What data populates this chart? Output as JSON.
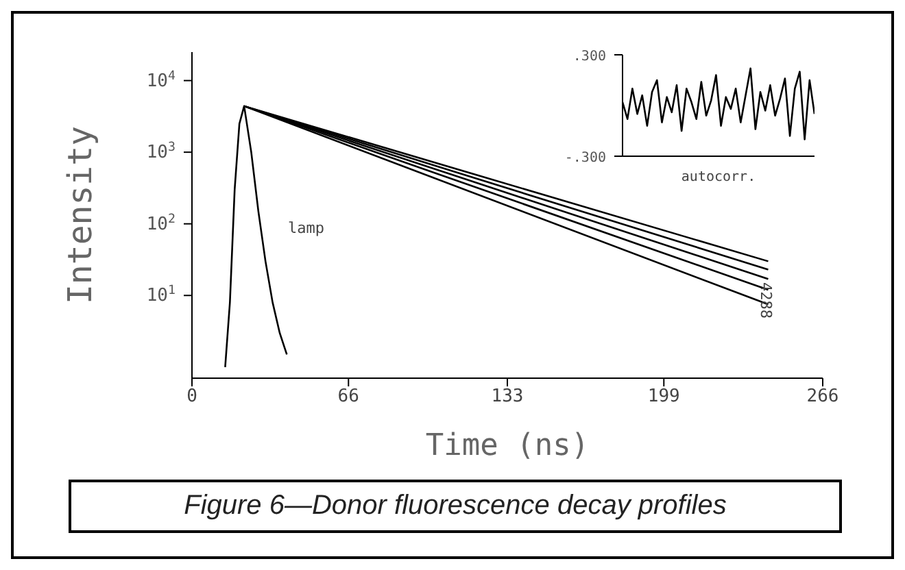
{
  "chart_data": [
    {
      "type": "line",
      "xlabel": "Time (ns)",
      "ylabel": "Intensity",
      "log": "y",
      "xlim": [
        0,
        266
      ],
      "xticks": [
        0,
        66,
        133,
        199,
        266
      ],
      "ylim": [
        0.7,
        25000
      ],
      "yticks": [
        {
          "value": 10,
          "label": "10$^{1}$"
        },
        {
          "value": 100,
          "label": "10$^{2}$"
        },
        {
          "value": 1000,
          "label": "10$^{3}$"
        },
        {
          "value": 10000,
          "label": "10$^{4}$"
        }
      ],
      "grid": false,
      "legend": false,
      "marker": "none",
      "line_style": "solid",
      "annotations": [
        "lamp",
        "4288",
        "Figure 6—Donor fluorescence decay profiles"
      ],
      "series": [
        {
          "color": "#000000",
          "x": [
            14,
            16,
            18,
            20,
            22,
            25,
            28,
            31,
            34,
            37,
            40
          ],
          "values": [
            1,
            8,
            300,
            2500,
            4400,
            1000,
            150,
            30,
            8,
            3,
            1.5
          ]
        },
        {
          "color": "#000000",
          "x": [
            22,
            243
          ],
          "values": [
            4400,
            30
          ]
        },
        {
          "color": "#000000",
          "x": [
            22,
            243
          ],
          "values": [
            4400,
            23
          ]
        },
        {
          "color": "#000000",
          "x": [
            22,
            243
          ],
          "values": [
            4400,
            17
          ]
        },
        {
          "color": "#000000",
          "x": [
            22,
            243
          ],
          "values": [
            4400,
            12
          ]
        },
        {
          "color": "#000000",
          "x": [
            22,
            243
          ],
          "values": [
            4400,
            7.5
          ]
        }
      ]
    },
    {
      "type": "line",
      "xlabel": "autocorr.",
      "ylim": [
        -0.3,
        0.3
      ],
      "yticks": [
        {
          "value": 0.3,
          "label": ".300"
        },
        {
          "value": -0.3,
          "label": "-.300"
        }
      ],
      "tick_labels": "y",
      "grid": false,
      "legend": false,
      "marker": "none",
      "line_style": "solid",
      "categories": [
        null,
        null,
        null,
        null,
        null,
        null,
        null,
        null,
        null,
        null,
        null,
        null,
        null,
        null,
        null,
        null,
        null,
        null,
        null,
        null,
        null,
        null,
        null,
        null,
        null,
        null,
        null,
        null,
        null,
        null,
        null,
        null,
        null,
        null,
        null,
        null,
        null,
        null,
        null,
        null
      ],
      "series": [
        {
          "color": "#000000",
          "values": [
            0.02,
            -0.08,
            0.1,
            -0.05,
            0.06,
            -0.12,
            0.08,
            0.15,
            -0.1,
            0.05,
            -0.04,
            0.12,
            -0.15,
            0.1,
            0.02,
            -0.08,
            0.14,
            -0.06,
            0.03,
            0.18,
            -0.12,
            0.05,
            -0.02,
            0.1,
            -0.1,
            0.06,
            0.22,
            -0.14,
            0.08,
            -0.03,
            0.12,
            -0.06,
            0.04,
            0.16,
            -0.18,
            0.1,
            0.2,
            -0.2,
            0.15,
            -0.05
          ]
        }
      ]
    }
  ]
}
